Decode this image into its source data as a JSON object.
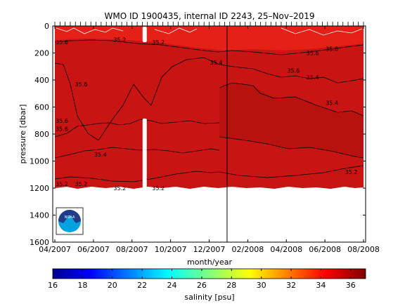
{
  "chart_data": {
    "type": "heatmap",
    "title": "WMO ID 1900435, internal ID 2243, 25–Nov–2019",
    "xlabel": "month/year",
    "ylabel": "pressure [dbar]",
    "x_tick_labels": [
      "04/2007",
      "06/2007",
      "08/2007",
      "10/2007",
      "12/2007",
      "02/2008",
      "04/2008",
      "06/2008",
      "08/2008"
    ],
    "x_range": [
      "2007-04",
      "2008-08"
    ],
    "y_ticks": [
      0,
      200,
      400,
      600,
      800,
      1000,
      1200,
      1400,
      1600
    ],
    "y_range": [
      0,
      1600
    ],
    "y_reversed": true,
    "data_max_pressure": 1200,
    "colorbar": {
      "label": "salinity [psu]",
      "ticks": [
        16,
        18,
        20,
        22,
        24,
        26,
        28,
        30,
        32,
        34,
        36
      ],
      "range": [
        16,
        37
      ],
      "colormap": "jet"
    },
    "contour_labels": [
      {
        "text": "35.6",
        "date": "2007-04",
        "pressure": 120
      },
      {
        "text": "35.2",
        "date": "2007-07",
        "pressure": 100
      },
      {
        "text": "35.2",
        "date": "2007-09",
        "pressure": 120
      },
      {
        "text": "35.6",
        "date": "2007-05",
        "pressure": 430
      },
      {
        "text": "35.4",
        "date": "2007-12",
        "pressure": 270
      },
      {
        "text": "35.6",
        "date": "2008-05",
        "pressure": 200
      },
      {
        "text": "35.6",
        "date": "2008-04",
        "pressure": 330
      },
      {
        "text": "35.4",
        "date": "2008-05",
        "pressure": 380
      },
      {
        "text": "35.6",
        "date": "2008-06",
        "pressure": 170
      },
      {
        "text": "35.4",
        "date": "2008-06",
        "pressure": 570
      },
      {
        "text": "35.6",
        "date": "2007-04",
        "pressure": 700
      },
      {
        "text": "35.6",
        "date": "2007-04",
        "pressure": 760
      },
      {
        "text": "35.4",
        "date": "2007-06",
        "pressure": 950
      },
      {
        "text": "35.2",
        "date": "2007-04",
        "pressure": 1170
      },
      {
        "text": "35.2",
        "date": "2007-05",
        "pressure": 1170
      },
      {
        "text": "35.2",
        "date": "2007-07",
        "pressure": 1200
      },
      {
        "text": "35.2",
        "date": "2007-09",
        "pressure": 1200
      },
      {
        "text": "35.2",
        "date": "2008-07",
        "pressure": 1080
      }
    ],
    "gaps": [
      {
        "date": "2007-08",
        "pressure_range": [
          0,
          120
        ]
      },
      {
        "date": "2007-08",
        "pressure_range": [
          680,
          1200
        ]
      }
    ],
    "time_marker_date": "2008-01",
    "logo": "NOAA"
  },
  "colors": {
    "field_main": "#c81412",
    "field_deep": "#a80e0c",
    "field_mid": "#b8120e",
    "field_surface": "#e52016",
    "contour": "#000000",
    "white_contour": "#ffffff"
  }
}
